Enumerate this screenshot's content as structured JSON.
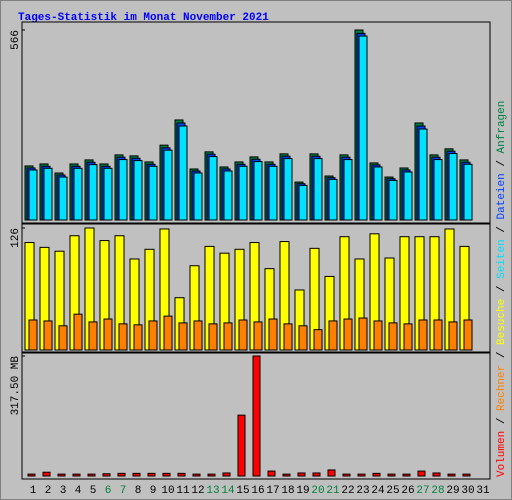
{
  "title": "Tages-Statistik im Monat November 2021",
  "legend_separator": " / ",
  "chart_data": [
    {
      "type": "bar",
      "ylim": [
        0,
        566
      ],
      "yticks": [
        566
      ],
      "grid": false,
      "series": [
        {
          "name": "Anfragen",
          "color": "#008040",
          "values": [
            161,
            167,
            140,
            167,
            179,
            167,
            194,
            191,
            173,
            223,
            298,
            152,
            203,
            158,
            173,
            188,
            173,
            197,
            113,
            197,
            131,
            194,
            566,
            170,
            128,
            155,
            289,
            194,
            212,
            179,
            null
          ]
        },
        {
          "name": "Dateien",
          "color": "#0040ff",
          "values": [
            155,
            160,
            134,
            160,
            172,
            160,
            187,
            184,
            166,
            215,
            289,
            146,
            196,
            152,
            166,
            181,
            166,
            190,
            108,
            190,
            126,
            187,
            556,
            164,
            123,
            149,
            280,
            187,
            205,
            172,
            null
          ]
        },
        {
          "name": "Seiten",
          "color": "#00e0ff",
          "values": [
            149,
            154,
            128,
            154,
            165,
            154,
            180,
            177,
            160,
            208,
            280,
            140,
            189,
            146,
            160,
            174,
            160,
            183,
            103,
            183,
            121,
            180,
            548,
            158,
            118,
            143,
            271,
            180,
            198,
            166,
            null
          ]
        }
      ]
    },
    {
      "type": "bar",
      "ylim": [
        0,
        126
      ],
      "yticks": [
        126
      ],
      "grid": false,
      "series": [
        {
          "name": "Besuche",
          "color": "#ffff00",
          "values": [
            111,
            106,
            102,
            118,
            126,
            113,
            118,
            94,
            104,
            125,
            54,
            87,
            107,
            100,
            104,
            111,
            84,
            112,
            62,
            105,
            76,
            117,
            94,
            120,
            95,
            117,
            117,
            117,
            125,
            107,
            null
          ]
        },
        {
          "name": "Rechner",
          "color": "#ff8000",
          "values": [
            31,
            30,
            25,
            37,
            29,
            32,
            27,
            26,
            30,
            35,
            28,
            30,
            27,
            28,
            31,
            29,
            32,
            27,
            25,
            21,
            30,
            32,
            33,
            30,
            28,
            27,
            31,
            31,
            29,
            31,
            null
          ]
        }
      ]
    },
    {
      "type": "bar",
      "ylim": [
        0,
        317.5
      ],
      "yticks": [
        {
          "value": 317.5,
          "label": "317.50 MB"
        }
      ],
      "grid": false,
      "categories": [
        "1",
        "2",
        "3",
        "4",
        "5",
        "6",
        "7",
        "8",
        "9",
        "10",
        "11",
        "12",
        "13",
        "14",
        "15",
        "16",
        "17",
        "18",
        "19",
        "20",
        "21",
        "22",
        "23",
        "24",
        "25",
        "26",
        "27",
        "28",
        "29",
        "30",
        "31"
      ],
      "category_colors": [
        "#000000",
        "#000000",
        "#000000",
        "#000000",
        "#000000",
        "#008040",
        "#008040",
        "#000000",
        "#000000",
        "#000000",
        "#000000",
        "#000000",
        "#008040",
        "#008040",
        "#000000",
        "#000000",
        "#000000",
        "#000000",
        "#000000",
        "#008040",
        "#008040",
        "#000000",
        "#000000",
        "#000000",
        "#000000",
        "#000000",
        "#008040",
        "#008040",
        "#000000",
        "#000000",
        "#000000"
      ],
      "series": [
        {
          "name": "Volumen",
          "color": "#ff0000",
          "values": [
            5,
            10,
            5,
            5,
            5,
            6,
            7,
            7,
            7,
            7,
            7,
            5,
            5,
            8,
            161,
            317.5,
            13,
            5,
            8,
            8,
            16,
            5,
            5,
            7,
            5,
            5,
            13,
            8,
            5,
            5,
            null
          ]
        }
      ]
    }
  ]
}
